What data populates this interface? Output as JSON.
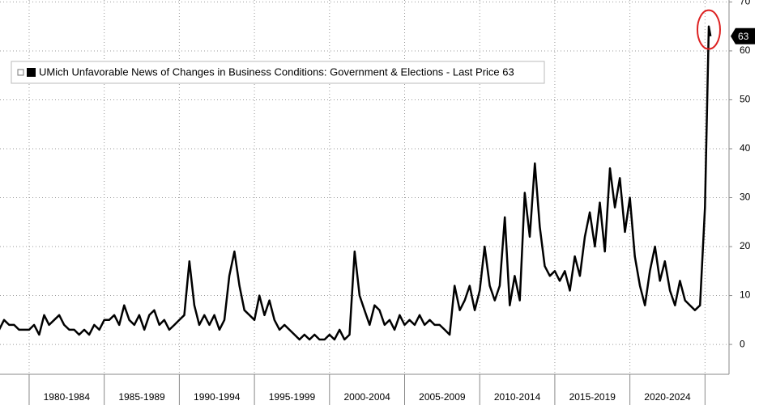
{
  "chart_data": {
    "type": "line",
    "x": [
      1978,
      1978.33,
      1978.67,
      1979,
      1979.33,
      1979.67,
      1980,
      1980.33,
      1980.67,
      1981,
      1981.33,
      1981.67,
      1982,
      1982.33,
      1982.67,
      1983,
      1983.33,
      1983.67,
      1984,
      1984.33,
      1984.67,
      1985,
      1985.33,
      1985.67,
      1986,
      1986.33,
      1986.67,
      1987,
      1987.33,
      1987.67,
      1988,
      1988.33,
      1988.67,
      1989,
      1989.33,
      1989.67,
      1990,
      1990.33,
      1990.67,
      1991,
      1991.33,
      1991.67,
      1992,
      1992.33,
      1992.67,
      1993,
      1993.33,
      1993.67,
      1994,
      1994.33,
      1994.67,
      1995,
      1995.33,
      1995.67,
      1996,
      1996.33,
      1996.67,
      1997,
      1997.33,
      1997.67,
      1998,
      1998.33,
      1998.67,
      1999,
      1999.33,
      1999.67,
      2000,
      2000.33,
      2000.67,
      2001,
      2001.33,
      2001.67,
      2002,
      2002.33,
      2002.67,
      2003,
      2003.33,
      2003.67,
      2004,
      2004.33,
      2004.67,
      2005,
      2005.33,
      2005.67,
      2006,
      2006.33,
      2006.67,
      2007,
      2007.33,
      2007.67,
      2008,
      2008.33,
      2008.67,
      2009,
      2009.33,
      2009.67,
      2010,
      2010.33,
      2010.67,
      2011,
      2011.33,
      2011.67,
      2012,
      2012.33,
      2012.67,
      2013,
      2013.33,
      2013.67,
      2014,
      2014.33,
      2014.67,
      2015,
      2015.33,
      2015.67,
      2016,
      2016.33,
      2016.67,
      2017,
      2017.33,
      2017.67,
      2018,
      2018.33,
      2018.67,
      2019,
      2019.33,
      2019.67,
      2020,
      2020.33,
      2020.67,
      2021,
      2021.33,
      2021.67,
      2022,
      2022.33,
      2022.67,
      2023,
      2023.33,
      2023.67,
      2024,
      2024.33,
      2024.67,
      2025,
      2025.25,
      2025.37
    ],
    "series": [
      {
        "name": "UMich Unfavorable News of Changes in Business Conditions: Government & Elections - Last Price 63",
        "color": "#000000",
        "values": [
          3,
          5,
          4,
          4,
          3,
          3,
          3,
          4,
          2,
          6,
          4,
          5,
          6,
          4,
          3,
          3,
          2,
          3,
          2,
          4,
          3,
          5,
          5,
          6,
          4,
          8,
          5,
          4,
          6,
          3,
          6,
          7,
          4,
          5,
          3,
          4,
          5,
          6,
          17,
          8,
          4,
          6,
          4,
          6,
          3,
          5,
          14,
          19,
          12,
          7,
          6,
          5,
          10,
          6,
          9,
          5,
          3,
          4,
          3,
          2,
          1,
          2,
          1,
          2,
          1,
          1,
          2,
          1,
          3,
          1,
          2,
          19,
          10,
          7,
          4,
          8,
          7,
          4,
          5,
          3,
          6,
          4,
          5,
          4,
          6,
          4,
          5,
          4,
          4,
          3,
          2,
          12,
          7,
          9,
          12,
          7,
          11,
          20,
          12,
          9,
          12,
          26,
          8,
          14,
          9,
          31,
          22,
          37,
          24,
          16,
          14,
          15,
          13,
          15,
          11,
          18,
          14,
          22,
          27,
          20,
          29,
          19,
          36,
          28,
          34,
          23,
          30,
          18,
          12,
          8,
          15,
          20,
          13,
          17,
          11,
          8,
          13,
          9,
          8,
          7,
          8,
          28,
          65,
          63
        ]
      }
    ],
    "last_price": 63,
    "xlim": [
      1978.06,
      2026.6
    ],
    "xgrid": [
      1980,
      1985,
      1990,
      1995,
      2000,
      2005,
      2010,
      2015,
      2020,
      2025
    ],
    "xticks": [
      {
        "value": 1982.5,
        "label": "1980-1984"
      },
      {
        "value": 1987.5,
        "label": "1985-1989"
      },
      {
        "value": 1992.5,
        "label": "1990-1994"
      },
      {
        "value": 1997.5,
        "label": "1995-1999"
      },
      {
        "value": 2002.5,
        "label": "2000-2004"
      },
      {
        "value": 2007.5,
        "label": "2005-2009"
      },
      {
        "value": 2012.5,
        "label": "2010-2014"
      },
      {
        "value": 2017.5,
        "label": "2015-2019"
      },
      {
        "value": 2022.5,
        "label": "2020-2024"
      }
    ],
    "ylim": [
      -6.1,
      70.4
    ],
    "yticks": [
      0,
      10,
      20,
      30,
      40,
      50,
      60,
      70
    ],
    "grid": true
  }
}
